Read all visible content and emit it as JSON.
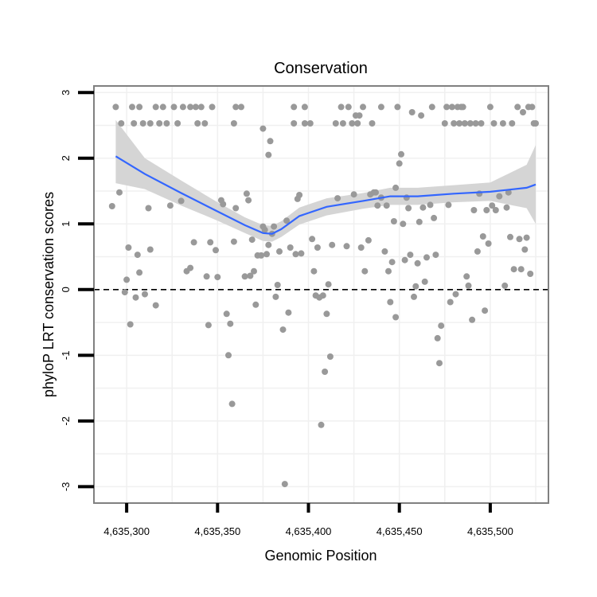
{
  "chart_data": {
    "type": "scatter",
    "title": "Conservation",
    "xlabel": "Genomic Position",
    "ylabel": "phyloP LRT conservation scores",
    "xlim": [
      4635282,
      4635532
    ],
    "ylim": [
      -3.25,
      3.1
    ],
    "x_ticks": [
      {
        "value": 4635300,
        "label": "4,635,300"
      },
      {
        "value": 4635350,
        "label": "4,635,350"
      },
      {
        "value": 4635400,
        "label": "4,635,400"
      },
      {
        "value": 4635450,
        "label": "4,635,450"
      },
      {
        "value": 4635500,
        "label": "4,635,500"
      }
    ],
    "y_ticks": [
      {
        "value": 3,
        "label": "3"
      },
      {
        "value": 2,
        "label": "2"
      },
      {
        "value": 1,
        "label": "1"
      },
      {
        "value": 0,
        "label": "0"
      },
      {
        "value": -1,
        "label": "-1"
      },
      {
        "value": -2,
        "label": "-2"
      },
      {
        "value": -3,
        "label": "-3"
      }
    ],
    "reference_line": {
      "y": 0,
      "style": "dashed"
    },
    "colors": {
      "points": "#999999",
      "smooth": "#3366ff",
      "band": "#d3d3d3",
      "panel_border": "#808080",
      "grid": "#f0f0f0"
    },
    "points": [
      [
        4635292,
        1.27
      ],
      [
        4635294,
        2.78
      ],
      [
        4635296,
        1.48
      ],
      [
        4635297,
        2.53
      ],
      [
        4635299,
        -0.04
      ],
      [
        4635300,
        0.15
      ],
      [
        4635301,
        0.64
      ],
      [
        4635302,
        -0.53
      ],
      [
        4635305,
        -0.12
      ],
      [
        4635306,
        0.53
      ],
      [
        4635307,
        0.26
      ],
      [
        4635303,
        2.78
      ],
      [
        4635307,
        2.78
      ],
      [
        4635304,
        2.53
      ],
      [
        4635309,
        2.53
      ],
      [
        4635310,
        -0.07
      ],
      [
        4635312,
        1.24
      ],
      [
        4635313,
        0.61
      ],
      [
        4635316,
        -0.24
      ],
      [
        4635313,
        2.53
      ],
      [
        4635316,
        2.78
      ],
      [
        4635318,
        2.53
      ],
      [
        4635320,
        2.78
      ],
      [
        4635324,
        1.28
      ],
      [
        4635322,
        2.53
      ],
      [
        4635326,
        2.78
      ],
      [
        4635328,
        2.53
      ],
      [
        4635330,
        1.35
      ],
      [
        4635331,
        2.78
      ],
      [
        4635333,
        0.28
      ],
      [
        4635335,
        0.33
      ],
      [
        4635335,
        2.78
      ],
      [
        4635337,
        0.72
      ],
      [
        4635339,
        2.53
      ],
      [
        4635338,
        2.78
      ],
      [
        4635341,
        2.78
      ],
      [
        4635343,
        2.53
      ],
      [
        4635344,
        0.2
      ],
      [
        4635345,
        -0.54
      ],
      [
        4635346,
        0.72
      ],
      [
        4635347,
        2.78
      ],
      [
        4635349,
        0.6
      ],
      [
        4635350,
        0.19
      ],
      [
        4635352,
        1.36
      ],
      [
        4635353,
        1.3
      ],
      [
        4635355,
        -0.37
      ],
      [
        4635356,
        -1.0
      ],
      [
        4635357,
        -0.52
      ],
      [
        4635358,
        -1.74
      ],
      [
        4635359,
        0.73
      ],
      [
        4635360,
        2.78
      ],
      [
        4635360,
        1.24
      ],
      [
        4635359,
        2.53
      ],
      [
        4635363,
        2.78
      ],
      [
        4635365,
        0.2
      ],
      [
        4635366,
        1.46
      ],
      [
        4635367,
        1.36
      ],
      [
        4635368,
        0.21
      ],
      [
        4635369,
        0.76
      ],
      [
        4635370,
        0.28
      ],
      [
        4635371,
        -0.23
      ],
      [
        4635372,
        0.52
      ],
      [
        4635374,
        0.52
      ],
      [
        4635375,
        0.96
      ],
      [
        4635375,
        2.45
      ],
      [
        4635376,
        0.91
      ],
      [
        4635377,
        0.54
      ],
      [
        4635378,
        0.68
      ],
      [
        4635378,
        2.05
      ],
      [
        4635379,
        2.26
      ],
      [
        4635380,
        0.85
      ],
      [
        4635381,
        0.96
      ],
      [
        4635382,
        -0.11
      ],
      [
        4635383,
        0.07
      ],
      [
        4635384,
        0.58
      ],
      [
        4635386,
        -0.61
      ],
      [
        4635387,
        -2.96
      ],
      [
        4635388,
        1.05
      ],
      [
        4635389,
        -0.35
      ],
      [
        4635390,
        0.64
      ],
      [
        4635392,
        2.53
      ],
      [
        4635392,
        2.78
      ],
      [
        4635393,
        0.54
      ],
      [
        4635394,
        1.38
      ],
      [
        4635395,
        1.44
      ],
      [
        4635396,
        0.55
      ],
      [
        4635398,
        2.78
      ],
      [
        4635398,
        2.53
      ],
      [
        4635401,
        2.53
      ],
      [
        4635402,
        0.77
      ],
      [
        4635403,
        0.28
      ],
      [
        4635404,
        -0.09
      ],
      [
        4635405,
        0.64
      ],
      [
        4635406,
        -0.12
      ],
      [
        4635407,
        -2.06
      ],
      [
        4635408,
        -0.09
      ],
      [
        4635409,
        -1.25
      ],
      [
        4635410,
        -0.37
      ],
      [
        4635411,
        0.08
      ],
      [
        4635412,
        -1.02
      ],
      [
        4635413,
        0.68
      ],
      [
        4635415,
        2.53
      ],
      [
        4635416,
        1.39
      ],
      [
        4635418,
        2.78
      ],
      [
        4635419,
        2.53
      ],
      [
        4635421,
        0.66
      ],
      [
        4635422,
        2.78
      ],
      [
        4635424,
        2.53
      ],
      [
        4635425,
        1.45
      ],
      [
        4635426,
        2.65
      ],
      [
        4635427,
        2.53
      ],
      [
        4635428,
        2.65
      ],
      [
        4635429,
        0.64
      ],
      [
        4635430,
        2.78
      ],
      [
        4635431,
        0.28
      ],
      [
        4635433,
        0.75
      ],
      [
        4635434,
        1.45
      ],
      [
        4635435,
        2.53
      ],
      [
        4635436,
        1.48
      ],
      [
        4635437,
        1.48
      ],
      [
        4635438,
        1.28
      ],
      [
        4635440,
        2.78
      ],
      [
        4635440,
        1.4
      ],
      [
        4635442,
        0.58
      ],
      [
        4635443,
        1.28
      ],
      [
        4635444,
        0.28
      ],
      [
        4635445,
        -0.19
      ],
      [
        4635446,
        0.42
      ],
      [
        4635447,
        1.04
      ],
      [
        4635448,
        1.55
      ],
      [
        4635448,
        -0.42
      ],
      [
        4635449,
        2.78
      ],
      [
        4635450,
        1.92
      ],
      [
        4635451,
        2.06
      ],
      [
        4635452,
        1.0
      ],
      [
        4635453,
        0.45
      ],
      [
        4635454,
        1.4
      ],
      [
        4635455,
        1.24
      ],
      [
        4635456,
        0.53
      ],
      [
        4635457,
        2.7
      ],
      [
        4635458,
        -0.11
      ],
      [
        4635459,
        0.05
      ],
      [
        4635460,
        0.4
      ],
      [
        4635461,
        1.03
      ],
      [
        4635462,
        2.65
      ],
      [
        4635463,
        1.25
      ],
      [
        4635464,
        0.12
      ],
      [
        4635465,
        0.49
      ],
      [
        4635467,
        1.29
      ],
      [
        4635468,
        2.78
      ],
      [
        4635469,
        1.09
      ],
      [
        4635470,
        0.53
      ],
      [
        4635471,
        -0.74
      ],
      [
        4635472,
        -1.12
      ],
      [
        4635473,
        -0.55
      ],
      [
        4635475,
        2.53
      ],
      [
        4635476,
        2.78
      ],
      [
        4635477,
        1.29
      ],
      [
        4635478,
        -0.19
      ],
      [
        4635479,
        2.78
      ],
      [
        4635480,
        2.53
      ],
      [
        4635481,
        -0.07
      ],
      [
        4635482,
        2.78
      ],
      [
        4635483,
        2.53
      ],
      [
        4635484,
        2.78
      ],
      [
        4635485,
        2.78
      ],
      [
        4635486,
        2.53
      ],
      [
        4635487,
        0.2
      ],
      [
        4635488,
        0.06
      ],
      [
        4635489,
        2.53
      ],
      [
        4635490,
        -0.46
      ],
      [
        4635491,
        1.21
      ],
      [
        4635492,
        2.53
      ],
      [
        4635493,
        0.58
      ],
      [
        4635494,
        1.46
      ],
      [
        4635495,
        2.53
      ],
      [
        4635496,
        0.81
      ],
      [
        4635497,
        -0.32
      ],
      [
        4635498,
        1.21
      ],
      [
        4635499,
        0.7
      ],
      [
        4635500,
        2.78
      ],
      [
        4635501,
        1.28
      ],
      [
        4635502,
        2.53
      ],
      [
        4635503,
        1.21
      ],
      [
        4635505,
        1.42
      ],
      [
        4635507,
        2.53
      ],
      [
        4635508,
        0.06
      ],
      [
        4635509,
        1.25
      ],
      [
        4635510,
        1.48
      ],
      [
        4635511,
        0.8
      ],
      [
        4635512,
        2.53
      ],
      [
        4635513,
        0.31
      ],
      [
        4635515,
        2.78
      ],
      [
        4635516,
        0.77
      ],
      [
        4635517,
        0.31
      ],
      [
        4635518,
        2.7
      ],
      [
        4635519,
        0.61
      ],
      [
        4635520,
        0.79
      ],
      [
        4635521,
        2.78
      ],
      [
        4635522,
        0.24
      ],
      [
        4635523,
        2.78
      ],
      [
        4635524,
        2.53
      ],
      [
        4635525,
        2.53
      ]
    ],
    "smooth": {
      "x": [
        4635294,
        4635310,
        4635330,
        4635350,
        4635365,
        4635375,
        4635380,
        4635385,
        4635395,
        4635410,
        4635430,
        4635445,
        4635460,
        4635480,
        4635500,
        4635520,
        4635525
      ],
      "y": [
        2.03,
        1.76,
        1.47,
        1.19,
        0.98,
        0.86,
        0.85,
        0.92,
        1.12,
        1.26,
        1.35,
        1.42,
        1.42,
        1.46,
        1.49,
        1.55,
        1.6
      ],
      "lower": [
        1.62,
        1.53,
        1.28,
        1.05,
        0.86,
        0.74,
        0.73,
        0.8,
        0.99,
        1.13,
        1.23,
        1.29,
        1.29,
        1.33,
        1.35,
        1.24,
        1.0
      ],
      "upper": [
        2.58,
        2.0,
        1.66,
        1.33,
        1.1,
        0.98,
        0.97,
        1.04,
        1.25,
        1.39,
        1.47,
        1.55,
        1.55,
        1.59,
        1.63,
        1.9,
        2.2
      ]
    }
  }
}
